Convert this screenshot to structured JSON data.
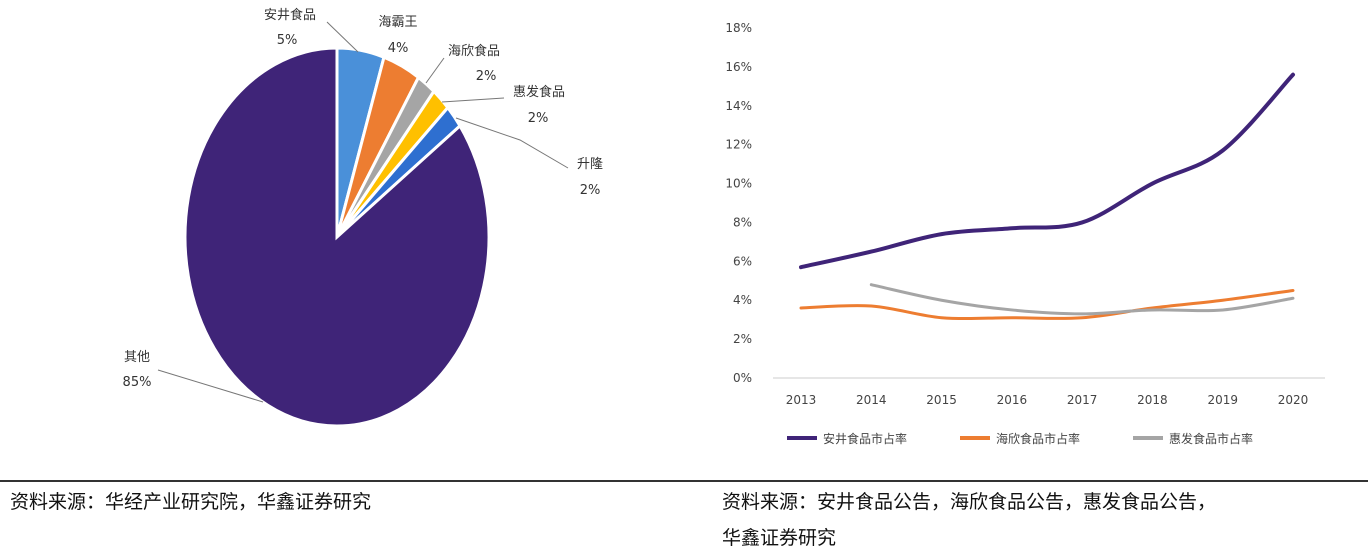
{
  "chart_data": [
    {
      "type": "pie",
      "slices": [
        {
          "label": "安井食品",
          "value": 5,
          "value_label": "5%",
          "color": "#4a90d9"
        },
        {
          "label": "海霸王",
          "value": 4,
          "value_label": "4%",
          "color": "#ed7d31"
        },
        {
          "label": "海欣食品",
          "value": 2,
          "value_label": "2%",
          "color": "#a5a5a5"
        },
        {
          "label": "惠发食品",
          "value": 2,
          "value_label": "2%",
          "color": "#ffc000"
        },
        {
          "label": "升隆",
          "value": 2,
          "value_label": "2%",
          "color": "#2e6fd0"
        },
        {
          "label": "其他",
          "value": 85,
          "value_label": "85%",
          "color": "#3f2478"
        }
      ]
    },
    {
      "type": "line",
      "x": [
        "2013",
        "2014",
        "2015",
        "2016",
        "2017",
        "2018",
        "2019",
        "2020"
      ],
      "yticks": [
        "0%",
        "2%",
        "4%",
        "6%",
        "8%",
        "10%",
        "12%",
        "14%",
        "16%",
        "18%"
      ],
      "ylim": [
        0,
        18
      ],
      "legend_position": "bottom",
      "series": [
        {
          "name": "安井食品市占率",
          "color": "#3f2478",
          "values": [
            5.7,
            6.5,
            7.4,
            7.7,
            8.0,
            10.0,
            11.7,
            15.6
          ]
        },
        {
          "name": "海欣食品市占率",
          "color": "#ed7d31",
          "values": [
            3.6,
            3.7,
            3.1,
            3.1,
            3.1,
            3.6,
            4.0,
            4.5
          ]
        },
        {
          "name": "惠发食品市占率",
          "color": "#a5a5a5",
          "values": [
            null,
            4.8,
            4.0,
            3.5,
            3.3,
            3.5,
            3.5,
            4.1
          ]
        }
      ]
    }
  ],
  "sources": {
    "left": "资料来源：华经产业研究院，华鑫证券研究",
    "right_line1": "资料来源：安井食品公告，海欣食品公告，惠发食品公告，",
    "right_line2": "华鑫证券研究"
  }
}
